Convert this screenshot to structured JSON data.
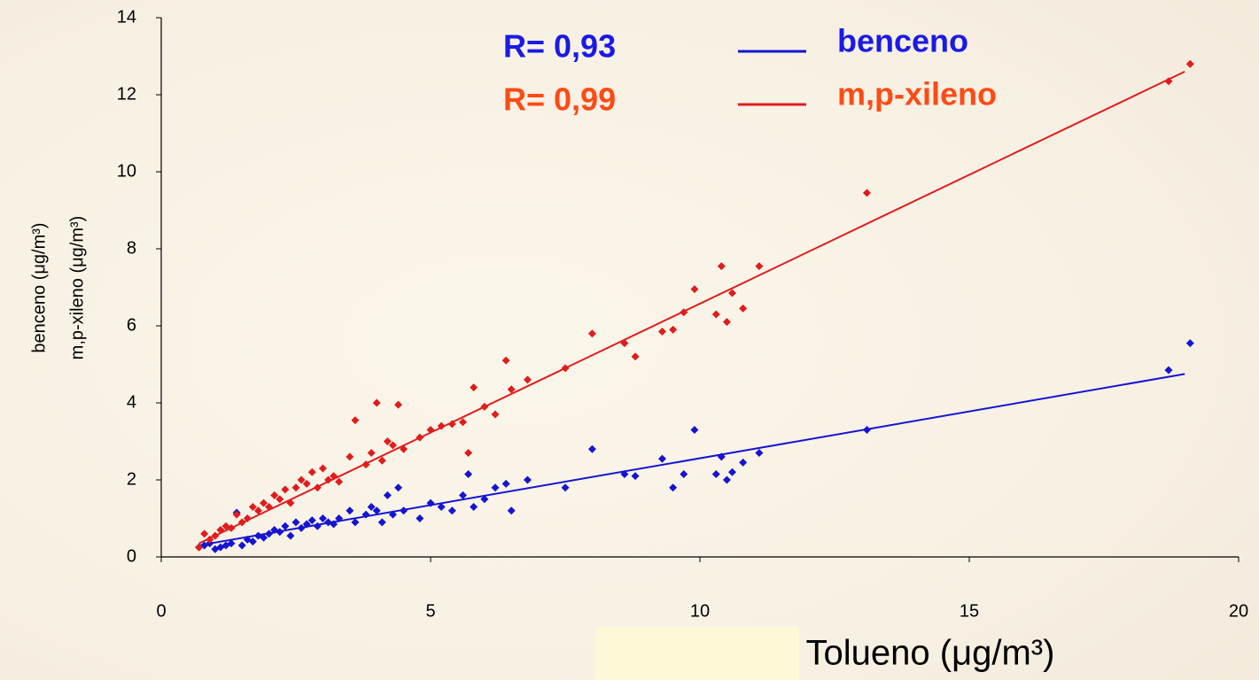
{
  "chart_data": {
    "type": "scatter",
    "x_label": "Tolueno (μg/m³)",
    "y_label": [
      "benceno  (μg/m³)",
      "m,p-xileno (μg/m³)"
    ],
    "xlim": [
      0,
      20
    ],
    "xticks": [
      0,
      5,
      10,
      15,
      20
    ],
    "ylim": [
      0,
      14
    ],
    "yticks": [
      0,
      2,
      4,
      6,
      8,
      10,
      12,
      14
    ],
    "x": [
      0.7,
      0.8,
      0.9,
      1.0,
      1.1,
      1.2,
      1.3,
      1.4,
      1.5,
      1.6,
      1.7,
      1.8,
      1.9,
      2.0,
      2.1,
      2.2,
      2.3,
      2.4,
      2.5,
      2.6,
      2.7,
      2.8,
      2.9,
      3.0,
      3.1,
      3.2,
      3.3,
      3.5,
      3.6,
      3.8,
      3.9,
      4.0,
      4.1,
      4.2,
      4.3,
      4.4,
      4.5,
      4.8,
      5.0,
      5.2,
      5.4,
      5.6,
      5.7,
      5.8,
      6.0,
      6.2,
      6.4,
      6.5,
      6.8,
      7.5,
      8.0,
      8.6,
      8.8,
      9.3,
      9.5,
      9.7,
      9.9,
      10.3,
      10.4,
      10.5,
      10.6,
      10.8,
      11.1,
      13.1,
      18.7,
      19.1
    ],
    "series": [
      {
        "name": "benceno",
        "color": "#1414d2",
        "r_label": "R= 0,93",
        "r_color": "#1a1ae6",
        "values": [
          0.25,
          0.3,
          0.35,
          0.2,
          0.25,
          0.3,
          0.35,
          1.15,
          0.3,
          0.45,
          0.4,
          0.55,
          0.5,
          0.6,
          0.7,
          0.65,
          0.8,
          0.55,
          0.9,
          0.75,
          0.85,
          0.95,
          0.8,
          1.0,
          0.9,
          0.85,
          1.0,
          1.2,
          0.9,
          1.1,
          1.3,
          1.2,
          0.9,
          1.6,
          1.1,
          1.8,
          1.2,
          1.0,
          1.4,
          1.3,
          1.2,
          1.6,
          2.15,
          1.3,
          1.5,
          1.8,
          1.9,
          1.2,
          2.0,
          1.8,
          2.8,
          2.15,
          2.1,
          2.55,
          1.8,
          2.15,
          3.3,
          2.15,
          2.6,
          2.0,
          2.2,
          2.45,
          2.7,
          3.3,
          4.85,
          5.55
        ],
        "trend": {
          "x": [
            0.7,
            19
          ],
          "y": [
            0.3,
            4.75
          ]
        }
      },
      {
        "name": "m,p-xileno",
        "color": "#e01c1c",
        "r_label": "R= 0,99",
        "r_color": "#ff4a14",
        "values": [
          0.25,
          0.6,
          0.45,
          0.55,
          0.7,
          0.8,
          0.75,
          1.1,
          0.9,
          1.0,
          1.3,
          1.2,
          1.4,
          1.3,
          1.6,
          1.5,
          1.75,
          1.4,
          1.8,
          2.0,
          1.9,
          2.2,
          1.8,
          2.3,
          2.0,
          2.1,
          1.95,
          2.6,
          3.55,
          2.4,
          2.7,
          4.0,
          2.5,
          3.0,
          2.9,
          3.95,
          2.8,
          3.1,
          3.3,
          3.4,
          3.45,
          3.5,
          2.7,
          4.4,
          3.9,
          3.7,
          5.1,
          4.35,
          4.6,
          4.9,
          5.8,
          5.55,
          5.2,
          5.85,
          5.9,
          6.35,
          6.95,
          6.3,
          7.55,
          6.1,
          6.85,
          6.45,
          7.55,
          9.45,
          12.35,
          12.8
        ],
        "trend": {
          "x": [
            0.7,
            19
          ],
          "y": [
            0.35,
            12.6
          ]
        }
      }
    ]
  }
}
